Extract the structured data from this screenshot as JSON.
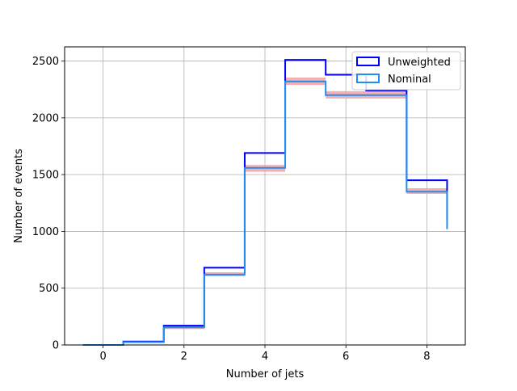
{
  "chart_data": {
    "type": "step-histogram",
    "xlabel": "Number of jets",
    "ylabel": "Number of events",
    "xlim": [
      -0.95,
      8.95
    ],
    "ylim": [
      0,
      2625
    ],
    "grid": true,
    "legend_position": "top-right",
    "bin_edges": [
      -0.5,
      0.5,
      1.5,
      2.5,
      3.5,
      4.5,
      5.5,
      6.5,
      7.5,
      8.5
    ],
    "x_ticks": [
      0,
      2,
      4,
      6,
      8
    ],
    "y_ticks": [
      0,
      500,
      1000,
      1500,
      2000,
      2500
    ],
    "series": [
      {
        "name": "Unweighted",
        "color": "#0000ff",
        "values": [
          0,
          30,
          170,
          680,
          1690,
          2510,
          2380,
          2240,
          1450,
          1100
        ]
      },
      {
        "name": "Nominal",
        "color": "#1f8ff0",
        "values": [
          0,
          25,
          155,
          620,
          1560,
          2320,
          2200,
          2200,
          1350,
          1020
        ]
      }
    ],
    "uncertainty_band": {
      "color": "#f4a6a6",
      "lower": [
        0,
        22,
        140,
        605,
        1525,
        2290,
        2170,
        2170,
        1330,
        1000
      ],
      "upper": [
        0,
        30,
        170,
        640,
        1585,
        2355,
        2235,
        2235,
        1380,
        1045
      ]
    }
  }
}
